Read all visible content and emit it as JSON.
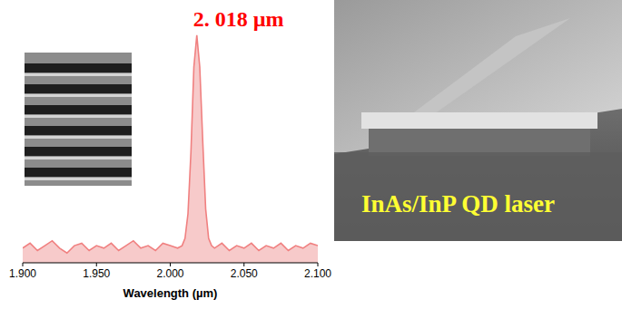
{
  "chart_data": {
    "type": "line",
    "annotations": [
      "2. 018 µm"
    ],
    "x_label": "Wavelength (µm)",
    "x": [
      1.9,
      1.905,
      1.91,
      1.915,
      1.92,
      1.925,
      1.93,
      1.935,
      1.94,
      1.945,
      1.95,
      1.955,
      1.96,
      1.965,
      1.97,
      1.975,
      1.98,
      1.985,
      1.99,
      1.995,
      2.0,
      2.005,
      2.008,
      2.01,
      2.012,
      2.014,
      2.016,
      2.018,
      2.02,
      2.022,
      2.024,
      2.026,
      2.028,
      2.03,
      2.035,
      2.04,
      2.045,
      2.05,
      2.055,
      2.06,
      2.065,
      2.07,
      2.075,
      2.08,
      2.085,
      2.09,
      2.095,
      2.1
    ],
    "series": [
      {
        "name": "InAs/InP QD laser",
        "color": "#f08080",
        "values": [
          0.06,
          0.08,
          0.05,
          0.07,
          0.09,
          0.06,
          0.04,
          0.07,
          0.08,
          0.05,
          0.07,
          0.06,
          0.08,
          0.05,
          0.07,
          0.09,
          0.06,
          0.07,
          0.05,
          0.08,
          0.07,
          0.06,
          0.07,
          0.1,
          0.2,
          0.45,
          0.8,
          0.93,
          0.8,
          0.5,
          0.22,
          0.1,
          0.07,
          0.06,
          0.08,
          0.05,
          0.07,
          0.06,
          0.08,
          0.05,
          0.07,
          0.06,
          0.08,
          0.05,
          0.07,
          0.06,
          0.08,
          0.07
        ]
      }
    ],
    "xlim": [
      1.9,
      2.1
    ],
    "ylim": [
      0,
      1
    ],
    "xticks": [
      {
        "value": 1.9,
        "label": "1.900"
      },
      {
        "value": 1.95,
        "label": "1.950"
      },
      {
        "value": 2.0,
        "label": "2.000"
      },
      {
        "value": 2.05,
        "label": "2.050"
      },
      {
        "value": 2.1,
        "label": "2.100"
      }
    ],
    "tick_labels": "x",
    "grid": false
  },
  "image_panel": {
    "label": "InAs/InP QD laser"
  }
}
